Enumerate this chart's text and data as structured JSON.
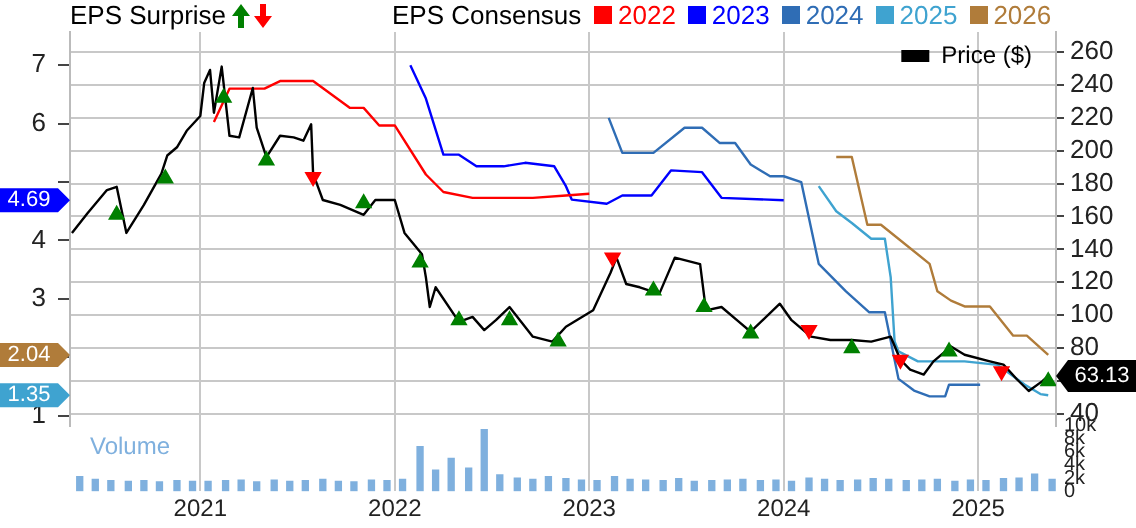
{
  "chart_data": {
    "type": "line",
    "title": "EPS Surprise",
    "legend_title": "EPS Consensus",
    "legend": "top",
    "grid": true,
    "annotations": [
      "4.69",
      "2.04",
      "1.35"
    ],
    "xlim": [
      2020.33,
      2025.4
    ],
    "xticks": [
      2021,
      2022,
      2023,
      2024,
      2025
    ],
    "ylim": [
      0.83,
      7.57
    ],
    "yticks": [
      1,
      {
        "value": 2,
        "label": null
      },
      3,
      4,
      {
        "value": 5,
        "label": null
      },
      6,
      7
    ],
    "y2lim": [
      33,
      272
    ],
    "y2ticks": [
      40,
      {
        "value": 60,
        "label": null
      },
      80,
      100,
      120,
      140,
      160,
      180,
      200,
      220,
      240,
      260
    ],
    "y3lim": [
      0,
      10000
    ],
    "y3ticks": [
      {
        "value": 0,
        "label": "0"
      },
      {
        "value": 2000,
        "label": "2k"
      },
      {
        "value": 4000,
        "label": "4k"
      },
      {
        "value": 6000,
        "label": "6k"
      },
      {
        "value": 8000,
        "label": "8k"
      },
      {
        "value": 10000,
        "label": "10k"
      }
    ],
    "series": [
      {
        "name": "2022",
        "axis": "y",
        "color": "#ff0000",
        "x": [
          2021.07,
          2021.15,
          2021.33,
          2021.41,
          2021.58,
          2021.77,
          2021.84,
          2021.92,
          2022.0,
          2022.16,
          2022.25,
          2022.4,
          2022.71,
          2022.88,
          2023.0
        ],
        "values": [
          6.03,
          6.6,
          6.6,
          6.73,
          6.73,
          6.27,
          6.27,
          5.97,
          5.97,
          5.13,
          4.83,
          4.73,
          4.73,
          4.77,
          4.8
        ]
      },
      {
        "name": "2023",
        "axis": "y",
        "color": "#0000ff",
        "x": [
          2022.08,
          2022.16,
          2022.25,
          2022.33,
          2022.42,
          2022.56,
          2022.67,
          2022.82,
          2022.88,
          2022.91,
          2023.09,
          2023.17,
          2023.32,
          2023.42,
          2023.58,
          2023.68,
          2024.0
        ],
        "values": [
          7.0,
          6.43,
          5.47,
          5.47,
          5.27,
          5.27,
          5.33,
          5.27,
          4.93,
          4.7,
          4.63,
          4.77,
          4.77,
          5.2,
          5.17,
          4.73,
          4.69
        ]
      },
      {
        "name": "2024",
        "axis": "y",
        "color": "#2f6db5",
        "x": [
          2023.1,
          2023.17,
          2023.33,
          2023.49,
          2023.58,
          2023.67,
          2023.75,
          2023.83,
          2023.93,
          2024.0,
          2024.09,
          2024.18,
          2024.32,
          2024.44,
          2024.52,
          2024.59,
          2024.67,
          2024.75,
          2024.83,
          2024.85,
          2025.01
        ],
        "values": [
          6.1,
          5.5,
          5.5,
          5.93,
          5.93,
          5.67,
          5.67,
          5.3,
          5.1,
          5.1,
          5.0,
          3.6,
          3.13,
          2.77,
          2.77,
          1.63,
          1.43,
          1.33,
          1.33,
          1.53,
          1.53
        ]
      },
      {
        "name": "2025",
        "axis": "y",
        "color": "#3fa3d0",
        "x": [
          2024.18,
          2024.27,
          2024.35,
          2024.45,
          2024.52,
          2024.55,
          2024.57,
          2024.59,
          2024.69,
          2024.93,
          2025.1,
          2025.24,
          2025.32,
          2025.36
        ],
        "values": [
          4.93,
          4.5,
          4.3,
          4.03,
          4.03,
          3.37,
          2.27,
          2.1,
          1.93,
          1.93,
          1.87,
          1.53,
          1.37,
          1.35
        ]
      },
      {
        "name": "2026",
        "axis": "y",
        "color": "#b07c3a",
        "x": [
          2024.27,
          2024.35,
          2024.43,
          2024.5,
          2024.75,
          2024.79,
          2024.86,
          2024.93,
          2025.06,
          2025.18,
          2025.25,
          2025.36
        ],
        "values": [
          5.43,
          5.43,
          4.27,
          4.27,
          3.6,
          3.13,
          2.97,
          2.87,
          2.87,
          2.37,
          2.37,
          2.04
        ]
      },
      {
        "name": "Price ($)",
        "axis": "y2",
        "color": "#000000",
        "x": [
          2020.34,
          2020.42,
          2020.52,
          2020.57,
          2020.62,
          2020.71,
          2020.8,
          2020.83,
          2020.88,
          2020.93,
          2021.0,
          2021.02,
          2021.05,
          2021.07,
          2021.11,
          2021.15,
          2021.2,
          2021.27,
          2021.29,
          2021.34,
          2021.41,
          2021.48,
          2021.53,
          2021.57,
          2021.58,
          2021.63,
          2021.72,
          2021.84,
          2021.9,
          2022.0,
          2022.05,
          2022.14,
          2022.16,
          2022.18,
          2022.21,
          2022.33,
          2022.4,
          2022.46,
          2022.52,
          2022.59,
          2022.71,
          2022.81,
          2022.88,
          2023.02,
          2023.11,
          2023.14,
          2023.19,
          2023.26,
          2023.36,
          2023.44,
          2023.57,
          2023.6,
          2023.68,
          2023.77,
          2023.83,
          2023.98,
          2024.04,
          2024.14,
          2024.24,
          2024.35,
          2024.45,
          2024.55,
          2024.6,
          2024.65,
          2024.72,
          2024.77,
          2024.86,
          2024.93,
          2025.06,
          2025.13,
          2025.2,
          2025.26,
          2025.33,
          2025.36
        ],
        "values": [
          150,
          162,
          176,
          178,
          150,
          167,
          186,
          197,
          202,
          212,
          221,
          241,
          249,
          223,
          251,
          209,
          208,
          238,
          214,
          196,
          209,
          208,
          206,
          216,
          186,
          170,
          167,
          161,
          170,
          170,
          150,
          137,
          123,
          105,
          117,
          96,
          99,
          91,
          97,
          105,
          87,
          84,
          93,
          103,
          126,
          135,
          119,
          117,
          113,
          135,
          131,
          103,
          105,
          96,
          90,
          107,
          97,
          87,
          85,
          85,
          84,
          87,
          73,
          67,
          64,
          72,
          81,
          76,
          72,
          70,
          61,
          54,
          60,
          63.13
        ],
        "value_labels": [
          null,
          null,
          null,
          null,
          null,
          null,
          null,
          null,
          null,
          null,
          null,
          null,
          null,
          null,
          null,
          null,
          null,
          null,
          null,
          null,
          null,
          null,
          null,
          null,
          null,
          null,
          null,
          null,
          null,
          null,
          null,
          null,
          null,
          null,
          null,
          null,
          null,
          null,
          null,
          null,
          null,
          null,
          null,
          null,
          null,
          null,
          null,
          null,
          null,
          null,
          null,
          null,
          null,
          null,
          null,
          null,
          null,
          null,
          null,
          null,
          null,
          null,
          null,
          null,
          null,
          null,
          null,
          null,
          null,
          null,
          null,
          null,
          null,
          "63.13"
        ]
      },
      {
        "type": "scatter",
        "axis": "y2",
        "marker": "triangle",
        "color": "#008000",
        "x": [
          2020.57,
          2020.82,
          2021.12,
          2021.34,
          2021.84,
          2022.13,
          2022.33,
          2022.59,
          2022.84,
          2023.33,
          2023.59,
          2023.83,
          2024.35,
          2024.85,
          2025.36
        ],
        "values": [
          161,
          183,
          232,
          194,
          168,
          132,
          97,
          97,
          84,
          115,
          105,
          89,
          80,
          78,
          60
        ]
      },
      {
        "type": "scatter",
        "axis": "y2",
        "marker": "triangle",
        "color": "#ff0000",
        "x": [
          2021.58,
          2023.12,
          2024.13,
          2024.6,
          2025.12
        ],
        "values": [
          184,
          135,
          91,
          73,
          66
        ]
      },
      {
        "name": "Volume",
        "type": "bar",
        "axis": "y3",
        "color": "#7fb0de",
        "x": [
          2020.38,
          2020.46,
          2020.54,
          2020.63,
          2020.71,
          2020.79,
          2020.88,
          2020.96,
          2021.04,
          2021.13,
          2021.21,
          2021.29,
          2021.38,
          2021.46,
          2021.54,
          2021.63,
          2021.71,
          2021.79,
          2021.88,
          2021.96,
          2022.04,
          2022.13,
          2022.21,
          2022.29,
          2022.38,
          2022.46,
          2022.54,
          2022.63,
          2022.71,
          2022.79,
          2022.88,
          2022.96,
          2023.04,
          2023.13,
          2023.21,
          2023.29,
          2023.38,
          2023.46,
          2023.54,
          2023.63,
          2023.71,
          2023.79,
          2023.88,
          2023.96,
          2024.04,
          2024.13,
          2024.21,
          2024.29,
          2024.38,
          2024.46,
          2024.54,
          2024.63,
          2024.71,
          2024.79,
          2024.88,
          2024.96,
          2025.04,
          2025.13,
          2025.21,
          2025.29,
          2025.38
        ],
        "values": [
          2200,
          1800,
          1600,
          1500,
          1600,
          1400,
          1600,
          1500,
          1500,
          1600,
          1700,
          1400,
          1700,
          1500,
          1600,
          1800,
          1500,
          1400,
          1700,
          1600,
          1800,
          6800,
          3200,
          5000,
          3500,
          9400,
          2500,
          2000,
          1800,
          2200,
          1900,
          1700,
          1600,
          2200,
          1800,
          1700,
          1600,
          1900,
          1500,
          1600,
          1700,
          1800,
          1600,
          1700,
          1500,
          2000,
          1800,
          1600,
          1700,
          1900,
          1800,
          1600,
          1700,
          1800,
          1500,
          1700,
          1600,
          1900,
          2000,
          2600,
          1800
        ]
      }
    ]
  }
}
